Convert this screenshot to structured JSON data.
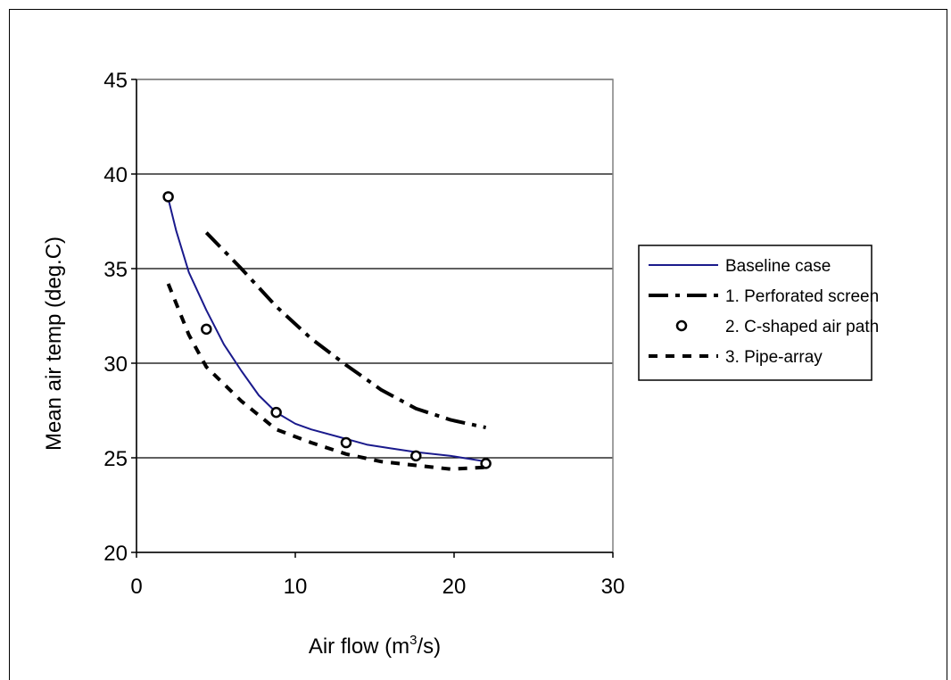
{
  "chart_data": {
    "type": "line",
    "xlabel": "Air flow (m",
    "xlabel_sup": "3",
    "xlabel_end": "/s)",
    "ylabel": "Mean air temp (deg.C)",
    "xlim": [
      0,
      30
    ],
    "ylim": [
      20,
      45
    ],
    "xticks": [
      0,
      10,
      20,
      30
    ],
    "yticks": [
      20,
      25,
      30,
      35,
      40,
      45
    ],
    "grid": "horizontal",
    "legend_position": "right",
    "series": [
      {
        "name": "Baseline case",
        "style": "solid",
        "color": "#1a1a8c",
        "x": [
          2,
          2.5,
          3.3,
          4.4,
          5.5,
          6.6,
          7.7,
          8.8,
          10,
          11,
          13.2,
          14.5,
          16,
          17.6,
          19.8,
          22
        ],
        "y": [
          38.7,
          37.0,
          34.8,
          32.8,
          31.0,
          29.6,
          28.3,
          27.4,
          26.8,
          26.5,
          26.0,
          25.7,
          25.5,
          25.3,
          25.1,
          24.8
        ]
      },
      {
        "name": "1. Perforated screen",
        "style": "dash-dot",
        "color": "#000000",
        "x": [
          4.4,
          6.6,
          8.8,
          11,
          13.2,
          15.4,
          17.6,
          19.8,
          22
        ],
        "y": [
          36.9,
          35.0,
          33.0,
          31.3,
          29.9,
          28.6,
          27.6,
          27.0,
          26.6
        ]
      },
      {
        "name": "2. C-shaped air path",
        "style": "markers",
        "color": "#000000",
        "x": [
          2,
          4.4,
          8.8,
          13.2,
          17.6,
          22
        ],
        "y": [
          38.8,
          31.8,
          27.4,
          25.8,
          25.1,
          24.7
        ]
      },
      {
        "name": "3. Pipe-array",
        "style": "dashed",
        "color": "#000000",
        "x": [
          2,
          3.3,
          4.4,
          6.6,
          8.8,
          11,
          13.2,
          15.4,
          17.6,
          19.8,
          22
        ],
        "y": [
          34.2,
          31.5,
          29.8,
          28.0,
          26.5,
          25.8,
          25.2,
          24.8,
          24.6,
          24.4,
          24.5
        ]
      }
    ]
  }
}
